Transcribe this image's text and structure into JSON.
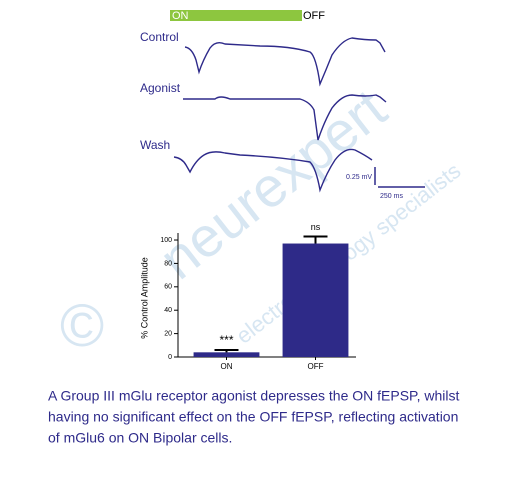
{
  "stimulus": {
    "on": "ON",
    "off": "OFF"
  },
  "traces": {
    "labels": [
      "Control",
      "Agonist",
      "Wash"
    ],
    "scale_y": "0.25 mV",
    "scale_x": "250 ms"
  },
  "watermark": {
    "copyright": "©",
    "brand": "neurexpert",
    "tagline": "electrophysiology specialists"
  },
  "chart_data": {
    "type": "bar",
    "categories": [
      "ON",
      "OFF"
    ],
    "values": [
      4,
      97
    ],
    "errors": [
      2,
      6
    ],
    "annotations": [
      "***",
      "ns"
    ],
    "color": "#2e2a88",
    "ylabel": "% Control Amplitude",
    "ylim": [
      0,
      106
    ],
    "yticks": [
      0,
      20,
      40,
      60,
      80,
      100
    ]
  },
  "caption": [
    "A Group III mGlu receptor agonist depresses the ON fEPSP, whilst",
    "having no significant effect on the OFF fEPSP, reflecting activation",
    "of mGlu6 on ON Bipolar cells."
  ]
}
